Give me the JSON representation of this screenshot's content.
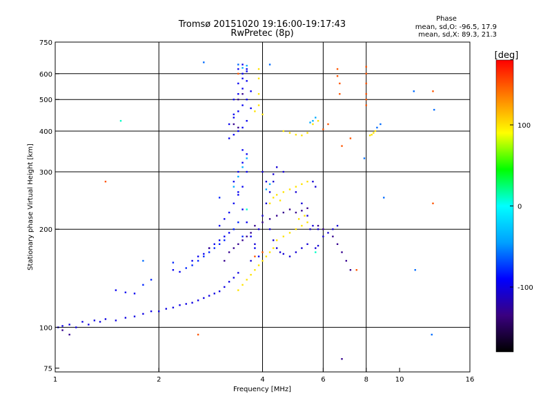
{
  "chart_data": {
    "type": "scatter",
    "title": "Tromsø 20151020 19:16:00-19:17:43",
    "subtitle": "RwPretec (8p)",
    "xlabel": "Frequency [MHz]",
    "ylabel": "Stationary phase Virtual Height [km]",
    "x_scale": "log2",
    "y_scale": "log",
    "xlim": [
      1,
      16
    ],
    "ylim": [
      73,
      750
    ],
    "xticks": [
      "1",
      "2",
      "4",
      "6",
      "8",
      "10",
      "16"
    ],
    "xtick_values": [
      1,
      2,
      4,
      6,
      8,
      10,
      16
    ],
    "xgrid_values": [
      2,
      4,
      6,
      8
    ],
    "yticks": [
      "75",
      "100",
      "200",
      "300",
      "400",
      "500",
      "600",
      "750"
    ],
    "ytick_values": [
      75,
      100,
      200,
      300,
      400,
      500,
      600,
      750
    ],
    "ygrid_values": [
      100,
      200,
      300,
      400,
      500,
      600
    ],
    "phase_box": {
      "title": "Phase",
      "line1": "mean, sd,O: -96.5, 17.9",
      "line2": "mean, sd,X:  89.3, 21.3"
    },
    "colorbar": {
      "label": "[deg]",
      "ticks": [
        "100",
        "0",
        "-100"
      ],
      "tick_values": [
        100,
        0,
        -100
      ],
      "range": [
        -180,
        180
      ],
      "colors": [
        "#000000",
        "#3a0080",
        "#0000ff",
        "#00a0ff",
        "#00ffff",
        "#00ff00",
        "#ffff00",
        "#ff8000",
        "#ff0000"
      ]
    },
    "series": [
      {
        "phase": -100,
        "points": [
          [
            1.02,
            100
          ],
          [
            1.05,
            101
          ],
          [
            1.1,
            102
          ],
          [
            1.15,
            100
          ],
          [
            1.2,
            104
          ],
          [
            1.25,
            102
          ],
          [
            1.3,
            105
          ],
          [
            1.35,
            104
          ],
          [
            1.4,
            106
          ],
          [
            1.5,
            105
          ],
          [
            1.6,
            107
          ],
          [
            1.7,
            108
          ],
          [
            1.8,
            110
          ],
          [
            1.9,
            112
          ],
          [
            2.0,
            112
          ],
          [
            2.1,
            114
          ],
          [
            2.2,
            115
          ],
          [
            2.3,
            117
          ],
          [
            2.4,
            118
          ],
          [
            2.5,
            119
          ],
          [
            2.6,
            121
          ],
          [
            2.7,
            123
          ],
          [
            2.8,
            125
          ],
          [
            2.9,
            127
          ],
          [
            3.0,
            129
          ],
          [
            3.1,
            133
          ],
          [
            3.2,
            138
          ],
          [
            3.3,
            142
          ],
          [
            3.4,
            147
          ]
        ]
      },
      {
        "phase": -95,
        "points": [
          [
            1.5,
            130
          ],
          [
            1.6,
            128
          ],
          [
            1.7,
            127
          ],
          [
            2.2,
            150
          ],
          [
            2.3,
            148
          ],
          [
            2.5,
            160
          ],
          [
            2.6,
            165
          ],
          [
            2.7,
            168
          ],
          [
            2.8,
            175
          ],
          [
            2.9,
            180
          ],
          [
            3.0,
            185
          ],
          [
            3.1,
            190
          ],
          [
            3.2,
            195
          ],
          [
            3.3,
            200
          ],
          [
            3.0,
            205
          ],
          [
            3.1,
            215
          ],
          [
            3.2,
            225
          ],
          [
            3.3,
            240
          ],
          [
            3.4,
            255
          ],
          [
            3.5,
            270
          ],
          [
            3.3,
            280
          ],
          [
            3.4,
            300
          ],
          [
            3.5,
            320
          ],
          [
            3.6,
            340
          ],
          [
            3.3,
            390
          ],
          [
            3.4,
            400
          ],
          [
            3.5,
            410
          ],
          [
            3.2,
            420
          ],
          [
            3.3,
            440
          ],
          [
            3.4,
            460
          ],
          [
            3.5,
            480
          ],
          [
            3.3,
            500
          ],
          [
            3.4,
            520
          ],
          [
            3.5,
            540
          ],
          [
            3.4,
            560
          ],
          [
            3.5,
            580
          ],
          [
            3.5,
            600
          ],
          [
            3.6,
            620
          ],
          [
            3.5,
            640
          ],
          [
            3.3,
            450
          ],
          [
            3.2,
            380
          ],
          [
            3.6,
            430
          ],
          [
            3.7,
            470
          ],
          [
            3.6,
            500
          ],
          [
            3.7,
            530
          ],
          [
            3.6,
            570
          ],
          [
            3.6,
            610
          ],
          [
            3.4,
            620
          ],
          [
            3.5,
            350
          ],
          [
            3.6,
            300
          ],
          [
            3.4,
            260
          ],
          [
            3.5,
            230
          ],
          [
            3.6,
            210
          ],
          [
            3.7,
            190
          ],
          [
            3.8,
            175
          ],
          [
            3.9,
            165
          ]
        ]
      },
      {
        "phase": -105,
        "points": [
          [
            3.7,
            160
          ],
          [
            3.8,
            180
          ],
          [
            3.9,
            200
          ],
          [
            4.0,
            220
          ],
          [
            4.1,
            240
          ],
          [
            4.2,
            260
          ],
          [
            4.3,
            280
          ],
          [
            4.2,
            200
          ],
          [
            4.3,
            185
          ],
          [
            4.4,
            175
          ],
          [
            4.5,
            170
          ],
          [
            4.6,
            168
          ],
          [
            4.8,
            165
          ],
          [
            5.0,
            170
          ],
          [
            5.2,
            175
          ],
          [
            5.4,
            180
          ],
          [
            5.5,
            200
          ],
          [
            5.6,
            205
          ],
          [
            5.4,
            220
          ],
          [
            5.2,
            240
          ],
          [
            5.0,
            260
          ],
          [
            5.6,
            280
          ],
          [
            5.7,
            270
          ],
          [
            5.8,
            200
          ],
          [
            6.0,
            190
          ],
          [
            6.2,
            195
          ],
          [
            6.4,
            200
          ],
          [
            6.6,
            205
          ],
          [
            5.7,
            175
          ],
          [
            5.8,
            178
          ],
          [
            4.6,
            300
          ],
          [
            4.4,
            310
          ],
          [
            4.3,
            295
          ],
          [
            4.1,
            280
          ],
          [
            4.0,
            300
          ]
        ]
      },
      {
        "phase": -80,
        "points": [
          [
            2.6,
            160
          ],
          [
            2.7,
            165
          ],
          [
            2.8,
            170
          ],
          [
            2.9,
            175
          ],
          [
            3.0,
            180
          ],
          [
            3.1,
            185
          ],
          [
            2.5,
            155
          ],
          [
            2.4,
            152
          ],
          [
            2.2,
            158
          ],
          [
            1.8,
            135
          ],
          [
            1.9,
            140
          ],
          [
            3.3,
            200
          ],
          [
            3.4,
            210
          ],
          [
            3.5,
            190
          ],
          [
            3.0,
            250
          ]
        ]
      },
      {
        "phase": -40,
        "points": [
          [
            3.3,
            270
          ],
          [
            3.4,
            290
          ],
          [
            3.5,
            310
          ],
          [
            3.6,
            330
          ],
          [
            4.1,
            265
          ],
          [
            4.2,
            275
          ],
          [
            5.5,
            425
          ],
          [
            5.6,
            430
          ],
          [
            5.7,
            440
          ],
          [
            3.5,
            625
          ],
          [
            3.6,
            635
          ]
        ]
      },
      {
        "phase": 100,
        "points": [
          [
            3.6,
            140
          ],
          [
            3.7,
            145
          ],
          [
            3.8,
            150
          ],
          [
            3.9,
            155
          ],
          [
            4.0,
            160
          ],
          [
            4.1,
            165
          ],
          [
            4.2,
            170
          ],
          [
            4.3,
            175
          ],
          [
            4.4,
            185
          ],
          [
            4.6,
            190
          ],
          [
            4.8,
            195
          ],
          [
            5.0,
            200
          ],
          [
            5.2,
            205
          ],
          [
            5.4,
            210
          ],
          [
            4.3,
            250
          ],
          [
            4.4,
            255
          ],
          [
            4.6,
            260
          ],
          [
            4.8,
            265
          ],
          [
            5.0,
            270
          ],
          [
            5.2,
            275
          ],
          [
            5.4,
            280
          ],
          [
            4.2,
            240
          ],
          [
            4.5,
            245
          ],
          [
            5.1,
            215
          ],
          [
            5.3,
            220
          ],
          [
            3.8,
            460
          ],
          [
            3.9,
            480
          ],
          [
            3.9,
            520
          ],
          [
            3.9,
            580
          ],
          [
            3.9,
            620
          ],
          [
            4.0,
            450
          ],
          [
            4.6,
            400
          ],
          [
            4.8,
            395
          ],
          [
            5.0,
            390
          ],
          [
            5.2,
            388
          ],
          [
            5.4,
            395
          ],
          [
            5.6,
            420
          ],
          [
            5.8,
            430
          ],
          [
            8.3,
            390
          ],
          [
            8.4,
            395
          ],
          [
            8.5,
            400
          ],
          [
            8.2,
            388
          ],
          [
            3.5,
            135
          ],
          [
            3.4,
            130
          ]
        ]
      },
      {
        "phase": 150,
        "points": [
          [
            6.6,
            620
          ],
          [
            6.6,
            590
          ],
          [
            6.7,
            560
          ],
          [
            6.7,
            520
          ],
          [
            8.0,
            630
          ],
          [
            8.0,
            600
          ],
          [
            8.0,
            560
          ],
          [
            8.0,
            520
          ],
          [
            8.0,
            500
          ],
          [
            8.0,
            480
          ],
          [
            7.2,
            380
          ],
          [
            6.8,
            360
          ],
          [
            7.5,
            150
          ],
          [
            3.4,
            600
          ],
          [
            4.0,
            170
          ],
          [
            3.8,
            165
          ],
          [
            12.5,
            530
          ],
          [
            12.5,
            240
          ],
          [
            2.6,
            95
          ],
          [
            1.4,
            280
          ],
          [
            6.0,
            405
          ],
          [
            6.2,
            420
          ]
        ]
      },
      {
        "phase": 10,
        "points": [
          [
            1.55,
            430
          ],
          [
            3.6,
            230
          ],
          [
            5.7,
            170
          ]
        ]
      },
      {
        "phase": -130,
        "points": [
          [
            1.1,
            95
          ],
          [
            1.05,
            98
          ],
          [
            3.1,
            160
          ],
          [
            3.2,
            170
          ],
          [
            3.3,
            175
          ],
          [
            3.4,
            180
          ],
          [
            3.5,
            185
          ],
          [
            3.6,
            190
          ],
          [
            3.7,
            195
          ],
          [
            3.8,
            205
          ],
          [
            4.0,
            210
          ],
          [
            4.2,
            215
          ],
          [
            4.4,
            220
          ],
          [
            4.6,
            225
          ],
          [
            4.8,
            230
          ],
          [
            5.0,
            225
          ],
          [
            5.2,
            228
          ],
          [
            5.4,
            232
          ],
          [
            3.4,
            500
          ],
          [
            3.5,
            520
          ],
          [
            3.3,
            420
          ],
          [
            3.4,
            410
          ],
          [
            5.8,
            205
          ],
          [
            6.0,
            200
          ],
          [
            6.4,
            190
          ],
          [
            6.6,
            180
          ],
          [
            6.8,
            170
          ],
          [
            7.0,
            160
          ],
          [
            7.2,
            150
          ],
          [
            6.8,
            80
          ],
          [
            2.8,
            175
          ]
        ]
      },
      {
        "phase": -60,
        "points": [
          [
            2.7,
            650
          ],
          [
            1.8,
            160
          ],
          [
            3.4,
            640
          ],
          [
            4.2,
            640
          ],
          [
            8.6,
            410
          ],
          [
            8.8,
            420
          ],
          [
            7.9,
            330
          ],
          [
            9.0,
            250
          ],
          [
            11.0,
            530
          ],
          [
            11.1,
            150
          ],
          [
            12.6,
            465
          ],
          [
            12.4,
            95
          ]
        ]
      }
    ]
  }
}
